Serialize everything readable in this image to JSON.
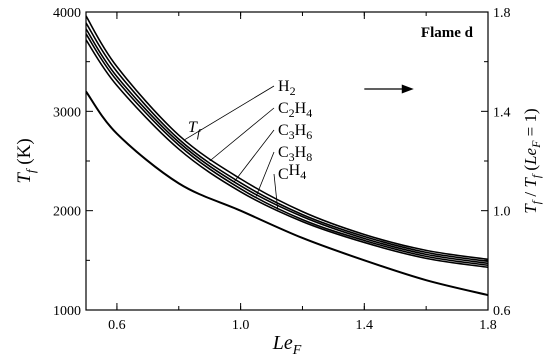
{
  "chart_data": {
    "type": "line",
    "title": "",
    "panel_label": "Flame d",
    "xlabel": {
      "base": "Le",
      "sub": "F"
    },
    "ylabel_left": {
      "base": "T",
      "sub": "f",
      "suffix": " (K)"
    },
    "ylabel_right": {
      "base": "T",
      "sub": "f",
      "text_a": " / ",
      "base2": "T",
      "sub2": "f",
      "text_b": " (",
      "base3": "Le",
      "sub3": "F",
      "text_c": " = 1)"
    },
    "xlim": [
      0.5,
      1.8
    ],
    "ylim_left": [
      1000,
      4000
    ],
    "ylim_right": [
      0.6,
      1.8
    ],
    "x_ticks": [
      "0.6",
      "1.0",
      "1.4",
      "1.8"
    ],
    "x_tick_values": [
      0.6,
      1.0,
      1.4,
      1.8
    ],
    "y_left_ticks": [
      "1000",
      "2000",
      "3000",
      "4000"
    ],
    "y_left_tick_values": [
      1000,
      2000,
      3000,
      4000
    ],
    "y_right_ticks": [
      "0.6",
      "1.0",
      "1.4",
      "1.8"
    ],
    "y_right_tick_values": [
      0.6,
      1.0,
      1.4,
      1.8
    ],
    "grid": false,
    "curve_group_label": {
      "base": "T",
      "sub": "f"
    },
    "series": [
      {
        "label": [
          {
            "t": "H"
          },
          {
            "t": "2",
            "sub": true
          }
        ],
        "x": [
          0.5,
          0.6,
          0.8,
          1.0,
          1.2,
          1.4,
          1.6,
          1.8
        ],
        "y": [
          3960,
          3450,
          2760,
          2320,
          1990,
          1760,
          1600,
          1510
        ]
      },
      {
        "label": [
          {
            "t": "C"
          },
          {
            "t": "2",
            "sub": true
          },
          {
            "t": "H"
          },
          {
            "t": "4",
            "sub": true
          }
        ],
        "x": [
          0.5,
          0.6,
          0.8,
          1.0,
          1.2,
          1.4,
          1.6,
          1.8
        ],
        "y": [
          3890,
          3400,
          2720,
          2280,
          1960,
          1740,
          1580,
          1490
        ]
      },
      {
        "label": [
          {
            "t": "C"
          },
          {
            "t": "3",
            "sub": true
          },
          {
            "t": "H"
          },
          {
            "t": "6",
            "sub": true
          }
        ],
        "x": [
          0.5,
          0.6,
          0.8,
          1.0,
          1.2,
          1.4,
          1.6,
          1.8
        ],
        "y": [
          3830,
          3350,
          2690,
          2250,
          1940,
          1720,
          1560,
          1470
        ]
      },
      {
        "label": [
          {
            "t": "C"
          },
          {
            "t": "3",
            "sub": true
          },
          {
            "t": "H"
          },
          {
            "t": "8",
            "sub": true
          }
        ],
        "x": [
          0.5,
          0.6,
          0.8,
          1.0,
          1.2,
          1.4,
          1.6,
          1.8
        ],
        "y": [
          3780,
          3310,
          2660,
          2220,
          1910,
          1700,
          1540,
          1450
        ]
      },
      {
        "label": [
          {
            "t": "C"
          },
          {
            "t": "H"
          },
          {
            "t": "4",
            "sub": true
          }
        ],
        "x": [
          0.5,
          0.6,
          0.8,
          1.0,
          1.2,
          1.4,
          1.6,
          1.8
        ],
        "y": [
          3720,
          3260,
          2620,
          2190,
          1890,
          1680,
          1520,
          1430
        ]
      }
    ],
    "ratio_curve": {
      "x": [
        0.5,
        0.6,
        0.8,
        1.0,
        1.2,
        1.4,
        1.6,
        1.8
      ],
      "y": [
        1.48,
        1.31,
        1.11,
        1.0,
        0.89,
        0.8,
        0.72,
        0.66
      ]
    },
    "arrow": {
      "from": [
        1.4,
        1.49
      ],
      "to": [
        1.56,
        1.49
      ],
      "direction": "right"
    }
  }
}
